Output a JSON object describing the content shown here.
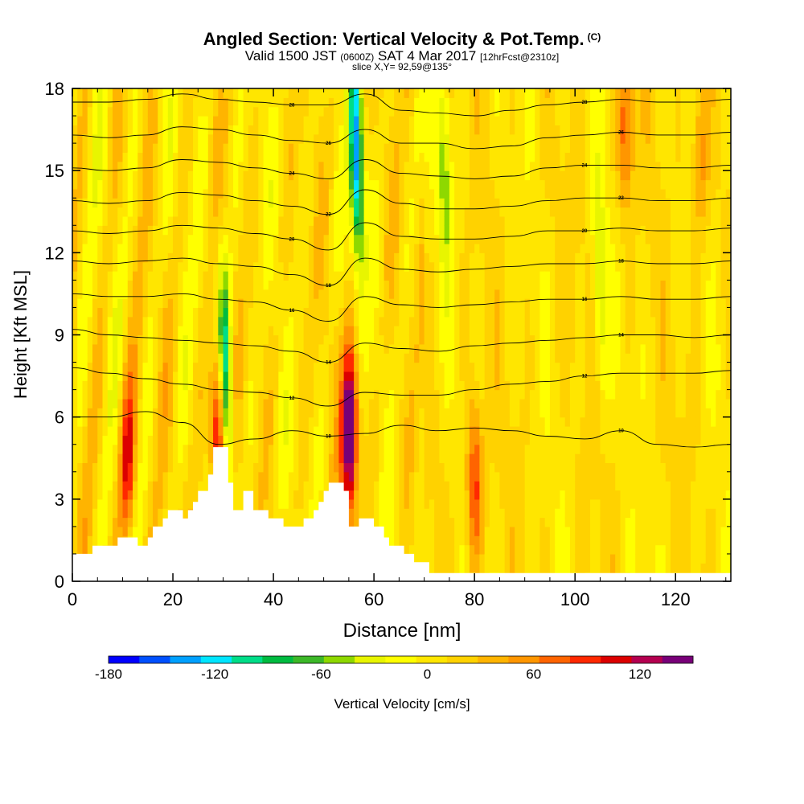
{
  "header": {
    "title": "Angled Section: Vertical Velocity & Pot.Temp.",
    "title_units": "(C)",
    "subtitle_main": "Valid 1500 JST",
    "subtitle_zulu": "(0600Z)",
    "subtitle_date": "SAT 4 Mar 2017",
    "subtitle_fcst": "[12hrFcst@2310z]",
    "slice": "slice X,Y= 92,59@135°"
  },
  "chart_data": {
    "type": "heatmap",
    "title": "Angled Section: Vertical Velocity & Pot.Temp.",
    "xlabel": "Distance [nm]",
    "ylabel": "Height [Kft MSL]",
    "xlim": [
      0,
      131
    ],
    "ylim": [
      0,
      18
    ],
    "x_ticks": [
      "0",
      "20",
      "40",
      "60",
      "80",
      "100",
      "120"
    ],
    "y_ticks": [
      "0",
      "3",
      "6",
      "9",
      "12",
      "15",
      "18"
    ],
    "colorbar": {
      "label": "Vertical Velocity [cm/s]",
      "tick_labels": [
        "-180",
        "-120",
        "-60",
        "0",
        "60",
        "120"
      ],
      "tick_values": [
        -180,
        -120,
        -60,
        0,
        60,
        120
      ],
      "range": [
        -180,
        150
      ],
      "colors": [
        "#0000ff",
        "#0050ff",
        "#00a0ff",
        "#00e5ff",
        "#00dd88",
        "#00bb40",
        "#3cb828",
        "#8ed800",
        "#e8f500",
        "#ffff00",
        "#ffe600",
        "#ffd200",
        "#ffb400",
        "#ff9600",
        "#ff6400",
        "#ff2800",
        "#dc0000",
        "#b40050",
        "#780078"
      ]
    },
    "terrain": [
      [
        0,
        1
      ],
      [
        4,
        1
      ],
      [
        4,
        1.3
      ],
      [
        9,
        1.3
      ],
      [
        9,
        1.6
      ],
      [
        13,
        1.6
      ],
      [
        13,
        1.3
      ],
      [
        15,
        1.3
      ],
      [
        15,
        1.6
      ],
      [
        16,
        1.6
      ],
      [
        16,
        2
      ],
      [
        18,
        2
      ],
      [
        18,
        2.3
      ],
      [
        19,
        2.3
      ],
      [
        19,
        2.6
      ],
      [
        22,
        2.6
      ],
      [
        22,
        2.3
      ],
      [
        23,
        2.3
      ],
      [
        23,
        2.6
      ],
      [
        24,
        2.6
      ],
      [
        24,
        2.9
      ],
      [
        25,
        2.9
      ],
      [
        25,
        3.3
      ],
      [
        27,
        3.3
      ],
      [
        27,
        3.9
      ],
      [
        28,
        3.9
      ],
      [
        28,
        4.9
      ],
      [
        31,
        4.9
      ],
      [
        31,
        3.6
      ],
      [
        32,
        3.6
      ],
      [
        32,
        2.6
      ],
      [
        34,
        2.6
      ],
      [
        34,
        3.3
      ],
      [
        36,
        3.3
      ],
      [
        36,
        2.6
      ],
      [
        39,
        2.6
      ],
      [
        39,
        2.3
      ],
      [
        42,
        2.3
      ],
      [
        42,
        2
      ],
      [
        46,
        2
      ],
      [
        46,
        2.3
      ],
      [
        48,
        2.3
      ],
      [
        48,
        2.6
      ],
      [
        49,
        2.6
      ],
      [
        49,
        2.9
      ],
      [
        50,
        2.9
      ],
      [
        50,
        3.3
      ],
      [
        51,
        3.3
      ],
      [
        51,
        3.6
      ],
      [
        54,
        3.6
      ],
      [
        54,
        3.3
      ],
      [
        55,
        3.3
      ],
      [
        55,
        2
      ],
      [
        57,
        2
      ],
      [
        57,
        2.3
      ],
      [
        60,
        2.3
      ],
      [
        60,
        2
      ],
      [
        62,
        2
      ],
      [
        62,
        1.6
      ],
      [
        63,
        1.6
      ],
      [
        63,
        1.3
      ],
      [
        66,
        1.3
      ],
      [
        66,
        1
      ],
      [
        68,
        1
      ],
      [
        68,
        0.7
      ],
      [
        71,
        0.7
      ],
      [
        71,
        0.3
      ],
      [
        131,
        0.3
      ]
    ],
    "contours": [
      {
        "label": "28",
        "values": [
          17.5,
          17.5,
          17.6,
          17.8,
          17.6,
          17.5,
          17.4,
          17.4,
          17.8,
          17.2,
          17.1,
          17.0,
          17.2,
          17.4,
          17.5,
          17.6,
          17.5,
          17.5,
          17.6
        ]
      },
      {
        "label": "26",
        "values": [
          16.3,
          16.2,
          16.3,
          16.6,
          16.5,
          16.3,
          16.1,
          16.0,
          16.5,
          16.0,
          16.0,
          15.8,
          15.9,
          16.2,
          16.3,
          16.4,
          16.3,
          16.3,
          16.4
        ]
      },
      {
        "label": "24",
        "values": [
          15.1,
          15.0,
          15.1,
          15.4,
          15.3,
          15.1,
          14.9,
          14.7,
          15.4,
          14.9,
          14.8,
          14.7,
          14.8,
          15.1,
          15.2,
          15.2,
          15.1,
          15.1,
          15.2
        ]
      },
      {
        "label": "22",
        "values": [
          13.9,
          13.8,
          13.9,
          14.2,
          14.1,
          13.9,
          13.7,
          13.4,
          14.3,
          13.8,
          13.6,
          13.6,
          13.7,
          13.9,
          14.0,
          14.0,
          13.9,
          13.9,
          14.0
        ]
      },
      {
        "label": "20",
        "values": [
          12.8,
          12.7,
          12.8,
          13.0,
          12.9,
          12.7,
          12.5,
          12.1,
          13.1,
          12.6,
          12.5,
          12.5,
          12.6,
          12.8,
          12.8,
          12.9,
          12.8,
          12.8,
          12.9
        ]
      },
      {
        "label": "18",
        "values": [
          11.7,
          11.6,
          11.7,
          11.8,
          11.6,
          11.5,
          11.2,
          10.8,
          11.8,
          11.4,
          11.3,
          11.4,
          11.5,
          11.6,
          11.6,
          11.7,
          11.6,
          11.6,
          11.7
        ]
      },
      {
        "label": "16",
        "values": [
          10.5,
          10.4,
          10.4,
          10.5,
          10.3,
          10.2,
          9.9,
          9.5,
          10.4,
          10.1,
          10.0,
          10.1,
          10.2,
          10.3,
          10.3,
          10.4,
          10.3,
          10.3,
          10.4
        ]
      },
      {
        "label": "14",
        "values": [
          9.2,
          9.0,
          8.9,
          8.8,
          8.7,
          8.6,
          8.4,
          8.0,
          8.7,
          8.5,
          8.4,
          8.6,
          8.7,
          8.8,
          8.9,
          9.0,
          9.0,
          8.9,
          9.0
        ]
      },
      {
        "label": "12",
        "values": [
          7.8,
          7.6,
          7.4,
          7.2,
          7.0,
          6.9,
          6.7,
          6.4,
          6.9,
          6.8,
          6.8,
          7.0,
          7.2,
          7.3,
          7.5,
          7.6,
          7.6,
          7.6,
          7.7
        ]
      },
      {
        "label": "10",
        "values": [
          6.0,
          6.0,
          6.2,
          5.8,
          5.0,
          5.2,
          5.5,
          5.3,
          5.4,
          5.7,
          5.5,
          5.6,
          5.5,
          5.3,
          5.2,
          5.5,
          5.0,
          4.9,
          5.0
        ]
      }
    ],
    "updraft_cells": [
      {
        "x": 11,
        "y": 4.5,
        "amp": 95
      },
      {
        "x": 29,
        "y": 5.5,
        "amp": 130
      },
      {
        "x": 55.2,
        "y": 5.5,
        "amp": 170
      },
      {
        "x": 80,
        "y": 3.5,
        "amp": 85
      },
      {
        "x": 110,
        "y": 16.5,
        "amp": 70
      },
      {
        "x": 125,
        "y": 15.5,
        "amp": 55
      }
    ],
    "downdraft_cells": [
      {
        "x": 30.5,
        "y": 7.5,
        "amp": -130
      },
      {
        "x": 56.5,
        "y": 15.5,
        "amp": -150
      },
      {
        "x": 74,
        "y": 15,
        "amp": -55
      },
      {
        "x": 105,
        "y": 11,
        "amp": -55
      }
    ]
  }
}
